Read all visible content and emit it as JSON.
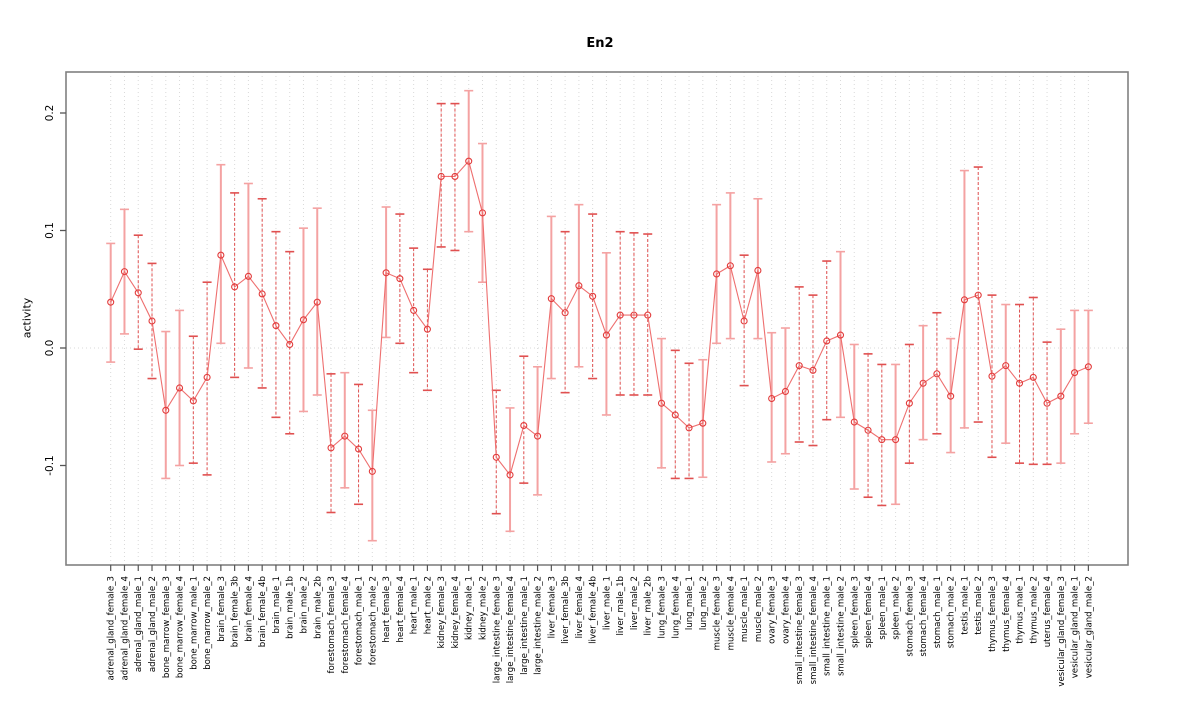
{
  "figure": {
    "title": "En2"
  },
  "axes": {
    "y_label": "activity",
    "y_tick_labels": [
      "-0.1",
      "0.0",
      "0.1",
      "0.2"
    ]
  },
  "colors": {
    "point_stroke": "#e23b3b",
    "connect_line": "#ee6f6f",
    "errorbar_solid": "#f4a2a2",
    "errorbar_dashed": "#e05050",
    "grid": "#d9d9d9",
    "frame": "#808080",
    "tick": "#555555",
    "text": "#000000"
  },
  "chart_data": {
    "type": "scatter",
    "subtype": "points-with-error-bars-connected-by-line",
    "title": "En2",
    "xlabel": "",
    "ylabel": "activity",
    "ylim": [
      -0.185,
      0.235
    ],
    "yticks": [
      -0.1,
      0.0,
      0.1,
      0.2
    ],
    "grid": "vertical dotted gridline at every category; horizontal dotted line at y=0",
    "legend": "none",
    "categories": [
      "adrenal_gland_female_3",
      "adrenal_gland_female_4",
      "adrenal_gland_male_1",
      "adrenal_gland_male_2",
      "bone_marrow_female_3",
      "bone_marrow_female_4",
      "bone_marrow_male_1",
      "bone_marrow_male_2",
      "brain_female_3",
      "brain_female_3b",
      "brain_female_4",
      "brain_female_4b",
      "brain_male_1",
      "brain_male_1b",
      "brain_male_2",
      "brain_male_2b",
      "forestomach_female_3",
      "forestomach_female_4",
      "forestomach_male_1",
      "forestomach_male_2",
      "heart_female_3",
      "heart_female_4",
      "heart_male_1",
      "heart_male_2",
      "kidney_female_3",
      "kidney_female_4",
      "kidney_male_1",
      "kidney_male_2",
      "large_intestine_female_3",
      "large_intestine_female_4",
      "large_intestine_male_1",
      "large_intestine_male_2",
      "liver_female_3",
      "liver_female_3b",
      "liver_female_4",
      "liver_female_4b",
      "liver_male_1",
      "liver_male_1b",
      "liver_male_2",
      "liver_male_2b",
      "lung_female_3",
      "lung_female_4",
      "lung_male_1",
      "lung_male_2",
      "muscle_female_3",
      "muscle_female_4",
      "muscle_male_1",
      "muscle_male_2",
      "ovary_female_3",
      "ovary_female_4",
      "small_intestine_female_3",
      "small_intestine_female_4",
      "small_intestine_male_1",
      "small_intestine_male_2",
      "spleen_female_3",
      "spleen_female_4",
      "spleen_male_1",
      "spleen_male_2",
      "stomach_female_3",
      "stomach_female_4",
      "stomach_male_1",
      "stomach_male_2",
      "testis_male_1",
      "testis_male_2",
      "thymus_female_3",
      "thymus_female_4",
      "thymus_male_1",
      "thymus_male_2",
      "uterus_female_4",
      "vesicular_gland_female_3",
      "vesicular_gland_male_1",
      "vesicular_gland_male_2"
    ],
    "series": [
      {
        "name": "activity",
        "values": [
          0.039,
          0.065,
          0.047,
          0.023,
          -0.053,
          -0.034,
          -0.045,
          -0.025,
          0.079,
          0.052,
          0.061,
          0.046,
          0.019,
          0.003,
          0.024,
          0.039,
          -0.085,
          -0.075,
          -0.086,
          -0.105,
          0.064,
          0.059,
          0.032,
          0.016,
          0.146,
          0.146,
          0.159,
          0.115,
          -0.093,
          -0.108,
          -0.066,
          -0.075,
          0.042,
          0.03,
          0.053,
          0.044,
          0.011,
          0.028,
          0.028,
          0.028,
          -0.047,
          -0.057,
          -0.068,
          -0.064,
          0.063,
          0.07,
          0.023,
          0.066,
          -0.043,
          -0.037,
          -0.015,
          -0.019,
          0.006,
          0.011,
          -0.063,
          -0.07,
          -0.078,
          -0.078,
          -0.047,
          -0.03,
          -0.022,
          -0.041,
          0.041,
          0.045,
          -0.024,
          -0.015,
          -0.03,
          -0.025,
          -0.047,
          -0.041,
          -0.021,
          -0.016
        ]
      },
      {
        "name": "ci_lower",
        "values": [
          -0.012,
          0.012,
          -0.001,
          -0.026,
          -0.111,
          -0.1,
          -0.098,
          -0.108,
          0.004,
          -0.025,
          -0.017,
          -0.034,
          -0.059,
          -0.073,
          -0.054,
          -0.04,
          -0.14,
          -0.119,
          -0.133,
          -0.164,
          0.009,
          0.004,
          -0.021,
          -0.036,
          0.086,
          0.083,
          0.099,
          0.056,
          -0.141,
          -0.156,
          -0.115,
          -0.125,
          -0.026,
          -0.038,
          -0.016,
          -0.026,
          -0.057,
          -0.04,
          -0.04,
          -0.04,
          -0.102,
          -0.111,
          -0.111,
          -0.11,
          0.004,
          0.008,
          -0.032,
          0.008,
          -0.097,
          -0.09,
          -0.08,
          -0.083,
          -0.061,
          -0.059,
          -0.12,
          -0.127,
          -0.134,
          -0.133,
          -0.098,
          -0.078,
          -0.073,
          -0.089,
          -0.068,
          -0.063,
          -0.093,
          -0.081,
          -0.098,
          -0.099,
          -0.099,
          -0.098,
          -0.073,
          -0.064
        ]
      },
      {
        "name": "ci_upper",
        "values": [
          0.089,
          0.118,
          0.096,
          0.072,
          0.014,
          0.032,
          0.01,
          0.056,
          0.156,
          0.132,
          0.14,
          0.127,
          0.099,
          0.082,
          0.102,
          0.119,
          -0.022,
          -0.021,
          -0.031,
          -0.053,
          0.12,
          0.114,
          0.085,
          0.067,
          0.208,
          0.208,
          0.219,
          0.174,
          -0.036,
          -0.051,
          -0.007,
          -0.016,
          0.112,
          0.099,
          0.122,
          0.114,
          0.081,
          0.099,
          0.098,
          0.097,
          0.008,
          -0.002,
          -0.013,
          -0.01,
          0.122,
          0.132,
          0.079,
          0.127,
          0.013,
          0.017,
          0.052,
          0.045,
          0.074,
          0.082,
          0.003,
          -0.005,
          -0.014,
          -0.014,
          0.003,
          0.019,
          0.03,
          0.008,
          0.151,
          0.154,
          0.045,
          0.037,
          0.037,
          0.043,
          0.005,
          0.016,
          0.032,
          0.032
        ]
      }
    ],
    "error_bar_dashed": [
      false,
      false,
      true,
      true,
      false,
      false,
      true,
      true,
      false,
      true,
      false,
      true,
      true,
      true,
      false,
      false,
      true,
      false,
      true,
      false,
      false,
      true,
      true,
      true,
      true,
      true,
      false,
      false,
      true,
      false,
      true,
      false,
      false,
      true,
      false,
      true,
      false,
      true,
      true,
      true,
      false,
      true,
      true,
      false,
      false,
      false,
      true,
      false,
      false,
      false,
      true,
      true,
      true,
      false,
      false,
      true,
      true,
      false,
      true,
      false,
      true,
      false,
      false,
      true,
      true,
      false,
      true,
      true,
      true,
      false,
      false,
      false
    ]
  }
}
